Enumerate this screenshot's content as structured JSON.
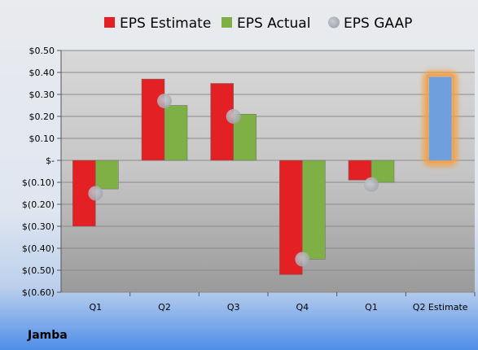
{
  "chart_data": {
    "type": "bar",
    "categories": [
      "Q1",
      "Q2",
      "Q3",
      "Q4",
      "Q1",
      "Q2 Estimate"
    ],
    "series": [
      {
        "name": "EPS Estimate",
        "values": [
          -0.3,
          0.37,
          0.35,
          -0.52,
          -0.09,
          null
        ],
        "color": "#e32024"
      },
      {
        "name": "EPS Actual",
        "values": [
          -0.13,
          0.25,
          0.21,
          -0.45,
          -0.1,
          null
        ],
        "color": "#7fb045"
      },
      {
        "name": "EPS GAAP",
        "values": [
          -0.15,
          0.27,
          0.2,
          -0.45,
          -0.11,
          null
        ],
        "color": "#b8bcc4"
      }
    ],
    "highlight": {
      "category_index": 5,
      "value": 0.38,
      "color": "#6f9fde",
      "glow": "#f5a043"
    },
    "ylim": [
      -0.6,
      0.5
    ],
    "yticks": [
      0.5,
      0.4,
      0.3,
      0.2,
      0.1,
      0.0,
      -0.1,
      -0.2,
      -0.3,
      -0.4,
      -0.5,
      -0.6
    ],
    "ytick_labels": [
      "$0.50",
      "$0.40",
      "$0.30",
      "$0.20",
      "$0.10",
      "$-",
      "$(0.10)",
      "$(0.20)",
      "$(0.30)",
      "$(0.40)",
      "$(0.50)",
      "$(0.60)"
    ],
    "legend_position": "top",
    "grid": true,
    "company": "Jamba"
  }
}
